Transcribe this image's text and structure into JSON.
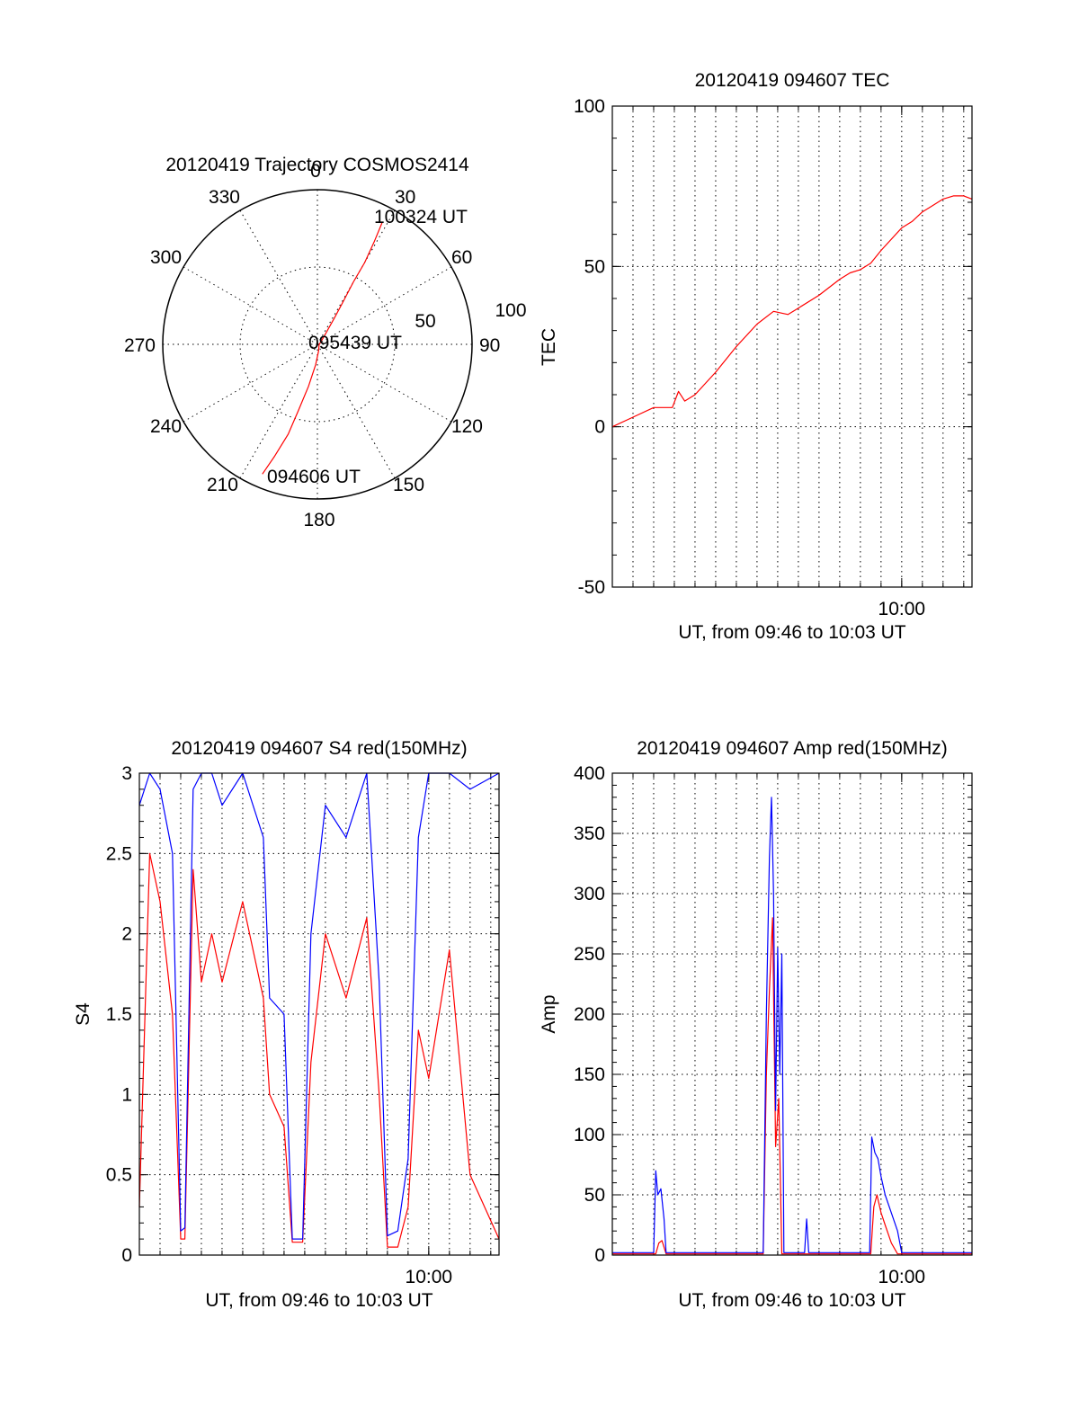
{
  "chart_data": [
    {
      "id": "polar",
      "type": "line",
      "title": "20120419 Trajectory COSMOS2414",
      "azimuth_labels": [
        "0",
        "30",
        "60",
        "90",
        "120",
        "150",
        "180",
        "210",
        "240",
        "270",
        "300",
        "330"
      ],
      "radial_labels": [
        "50",
        "100"
      ],
      "series": [
        {
          "color": "#ff0000",
          "azimuth_elevation": [
            [
              203,
              8
            ],
            [
              201,
              20
            ],
            [
              198,
              35
            ],
            [
              196,
              50
            ],
            [
              192,
              65
            ],
            [
              185,
              78
            ],
            [
              170,
              86
            ],
            [
              100,
              89
            ],
            [
              40,
              84
            ],
            [
              33,
              72
            ],
            [
              31,
              60
            ],
            [
              30,
              48
            ],
            [
              30,
              35
            ],
            [
              29,
              22
            ],
            [
              28,
              10
            ]
          ]
        }
      ],
      "annotations": [
        {
          "text": "100324 UT"
        },
        {
          "text": "095439 UT"
        },
        {
          "text": "094606 UT"
        }
      ]
    },
    {
      "id": "tec",
      "type": "line",
      "title": "20120419 094607 TEC",
      "xlabel": "UT, from 09:46 to 10:03 UT",
      "ylabel": "TEC",
      "xlim": [
        0,
        17.4
      ],
      "ylim": [
        -50,
        100
      ],
      "yticks": [
        "100",
        "50",
        "0",
        "-50"
      ],
      "xtick_labels": [
        {
          "x": 14,
          "label": "10:00"
        }
      ],
      "series": [
        {
          "color": "#ff0000",
          "x": [
            0,
            1,
            2,
            2.9,
            3.2,
            3.5,
            4,
            5,
            6,
            7,
            7.8,
            8.5,
            9,
            10,
            11,
            11.5,
            12,
            12.5,
            13,
            14,
            14.5,
            15,
            15.5,
            16,
            16.5,
            17,
            17.4
          ],
          "y": [
            0,
            3,
            6,
            6,
            11,
            8,
            10,
            17,
            25,
            32,
            36,
            35,
            37,
            41,
            46,
            48,
            49,
            51,
            55,
            62,
            64,
            67,
            69,
            71,
            72,
            72,
            71
          ]
        }
      ]
    },
    {
      "id": "s4",
      "type": "line",
      "title": "20120419 094607 S4 red(150MHz)",
      "xlabel": "UT, from 09:46 to 10:03 UT",
      "ylabel": "S4",
      "xlim": [
        0,
        17.4
      ],
      "ylim": [
        0,
        3
      ],
      "yticks": [
        "3",
        "2.5",
        "2",
        "1.5",
        "1",
        "0.5",
        "0"
      ],
      "xtick_labels": [
        {
          "x": 14,
          "label": "10:00"
        }
      ],
      "series": [
        {
          "color": "#ff0000",
          "x": [
            0,
            0.5,
            1,
            1.6,
            2,
            2.2,
            2.6,
            3,
            3.5,
            4,
            5,
            6,
            6.3,
            7,
            7.4,
            7.9,
            8.3,
            9,
            10,
            11,
            11.6,
            12,
            12.5,
            13,
            13.5,
            14,
            15,
            16,
            17.4
          ],
          "y": [
            0.3,
            2.5,
            2.2,
            1.5,
            0.1,
            0.1,
            2.4,
            1.7,
            2.0,
            1.7,
            2.2,
            1.6,
            1.0,
            0.8,
            0.08,
            0.08,
            1.2,
            2.0,
            1.6,
            2.1,
            1.0,
            0.05,
            0.05,
            0.3,
            1.4,
            1.1,
            1.9,
            0.5,
            0.1
          ]
        },
        {
          "color": "#0000ff",
          "x": [
            0,
            0.5,
            1,
            1.6,
            2,
            2.2,
            2.6,
            3,
            3.5,
            4,
            5,
            6,
            6.3,
            7,
            7.4,
            7.9,
            8.3,
            9,
            10,
            11,
            11.6,
            12,
            12.5,
            13,
            13.5,
            14,
            15,
            16,
            17.4
          ],
          "y": [
            2.8,
            3.0,
            2.9,
            2.5,
            0.15,
            0.17,
            2.9,
            3.0,
            3.0,
            2.8,
            3.0,
            2.6,
            1.6,
            1.5,
            0.1,
            0.1,
            2.0,
            2.8,
            2.6,
            3.0,
            1.7,
            0.12,
            0.15,
            0.6,
            2.6,
            3.0,
            3.0,
            2.9,
            3.0
          ]
        }
      ]
    },
    {
      "id": "amp",
      "type": "line",
      "title": "20120419 094607 Amp red(150MHz)",
      "xlabel": "UT, from 09:46 to 10:03 UT",
      "ylabel": "Amp",
      "xlim": [
        0,
        17.4
      ],
      "ylim": [
        0,
        400
      ],
      "yticks": [
        "400",
        "350",
        "300",
        "250",
        "200",
        "150",
        "100",
        "50",
        "0"
      ],
      "xtick_labels": [
        {
          "x": 14,
          "label": "10:00"
        }
      ],
      "series": [
        {
          "color": "#ff0000",
          "x": [
            0,
            2.1,
            2.25,
            2.4,
            2.6,
            7.3,
            7.45,
            7.6,
            7.75,
            7.9,
            8.05,
            8.2,
            9.5,
            12.5,
            12.65,
            12.8,
            13.0,
            13.2,
            13.5,
            13.8,
            17.4
          ],
          "y": [
            1,
            1,
            10,
            12,
            1,
            1,
            150,
            220,
            280,
            90,
            130,
            1,
            1,
            1,
            40,
            50,
            35,
            25,
            10,
            1,
            1
          ]
        },
        {
          "color": "#0000ff",
          "x": [
            0,
            2.0,
            2.1,
            2.2,
            2.35,
            2.5,
            2.6,
            7.3,
            7.45,
            7.6,
            7.7,
            7.8,
            7.9,
            8.0,
            8.1,
            8.2,
            8.3,
            9.3,
            9.4,
            9.5,
            12.45,
            12.55,
            12.7,
            12.85,
            13.0,
            13.2,
            13.5,
            13.8,
            14.0,
            17.4
          ],
          "y": [
            2,
            2,
            70,
            50,
            55,
            30,
            2,
            2,
            200,
            330,
            380,
            300,
            120,
            255,
            150,
            250,
            2,
            2,
            30,
            2,
            2,
            98,
            85,
            80,
            65,
            50,
            35,
            20,
            2,
            2
          ]
        }
      ]
    }
  ]
}
